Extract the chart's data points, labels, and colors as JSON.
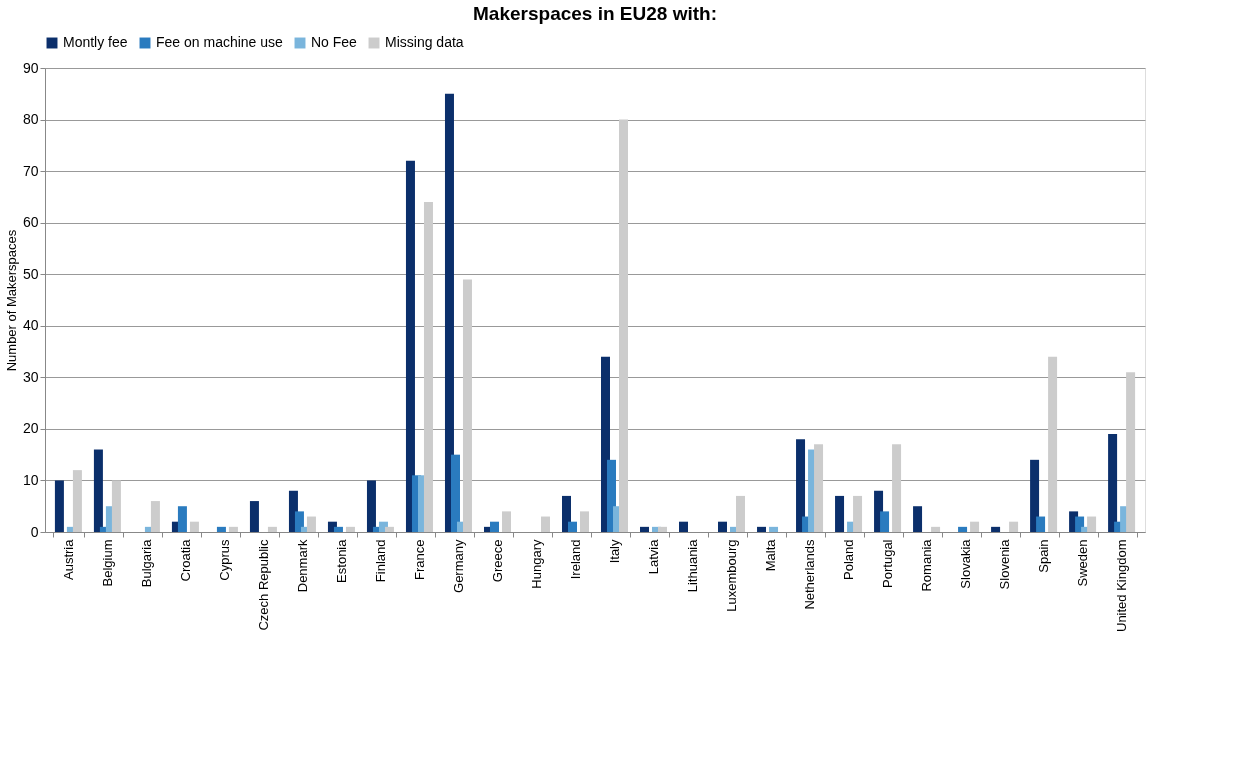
{
  "chart_data": {
    "type": "bar",
    "title": "Makerspaces in EU28 with:",
    "ylabel": "Number of Makerspaces",
    "categories": [
      "Austria",
      "Belgium",
      "Bulgaria",
      "Croatia",
      "Cyprus",
      "Czech Republic",
      "Denmark",
      "Estonia",
      "Finland",
      "France",
      "Germany",
      "Greece",
      "Hungary",
      "Ireland",
      "Italy",
      "Latvia",
      "Lithuania",
      "Luxembourg",
      "Malta",
      "Netherlands",
      "Poland",
      "Portugal",
      "Romania",
      "Slovakia",
      "Slovenia",
      "Spain",
      "Sweden",
      "United Kingdom"
    ],
    "series": [
      {
        "name": "Montly fee",
        "color": "#0b2f6b",
        "values": [
          10,
          16,
          0,
          2,
          0,
          6,
          8,
          2,
          10,
          72,
          85,
          1,
          0,
          7,
          34,
          1,
          2,
          2,
          1,
          18,
          7,
          8,
          5,
          0,
          1,
          14,
          4,
          19
        ]
      },
      {
        "name": "Fee on machine use",
        "color": "#2a7bbf",
        "values": [
          0,
          1,
          0,
          5,
          1,
          0,
          4,
          1,
          1,
          11,
          15,
          2,
          0,
          2,
          14,
          0,
          0,
          0,
          0,
          3,
          0,
          4,
          0,
          1,
          0,
          3,
          3,
          2
        ]
      },
      {
        "name": "No Fee",
        "color": "#7ab5dc",
        "values": [
          1,
          5,
          1,
          0,
          0,
          0,
          1,
          0,
          2,
          11,
          2,
          0,
          0,
          0,
          5,
          1,
          0,
          1,
          1,
          16,
          2,
          0,
          0,
          0,
          0,
          0,
          1,
          5
        ]
      },
      {
        "name": "Missing data",
        "color": "#cccccc",
        "values": [
          12,
          10,
          6,
          2,
          1,
          1,
          3,
          1,
          1,
          64,
          49,
          4,
          3,
          4,
          80,
          1,
          0,
          7,
          0,
          17,
          7,
          17,
          1,
          2,
          2,
          34,
          3,
          31
        ]
      }
    ],
    "ylim": [
      0,
      90
    ],
    "yticks": [
      0,
      10,
      20,
      30,
      40,
      50,
      60,
      70,
      80,
      90
    ],
    "grid": "y",
    "legend": "top"
  }
}
